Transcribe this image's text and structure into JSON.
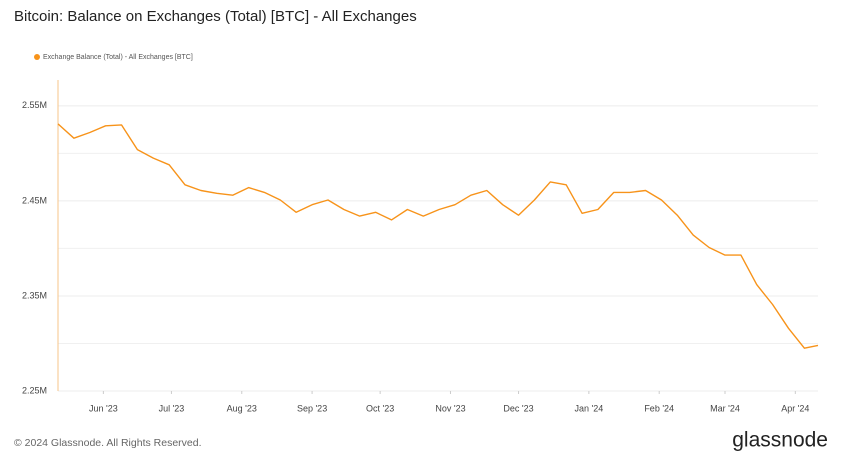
{
  "chart_data": {
    "type": "line",
    "title": "Bitcoin: Balance on Exchanges (Total) [BTC] - All Exchanges",
    "footer": "© 2024 Glassnode. All Rights Reserved.",
    "brand": "glassnode",
    "x": [
      "2023-05-12",
      "2023-05-19",
      "2023-05-26",
      "2023-06-02",
      "2023-06-09",
      "2023-06-16",
      "2023-06-23",
      "2023-06-30",
      "2023-07-07",
      "2023-07-14",
      "2023-07-21",
      "2023-07-28",
      "2023-08-04",
      "2023-08-11",
      "2023-08-18",
      "2023-08-25",
      "2023-09-01",
      "2023-09-08",
      "2023-09-15",
      "2023-09-22",
      "2023-09-29",
      "2023-10-06",
      "2023-10-13",
      "2023-10-20",
      "2023-10-27",
      "2023-11-03",
      "2023-11-10",
      "2023-11-17",
      "2023-11-24",
      "2023-12-01",
      "2023-12-08",
      "2023-12-15",
      "2023-12-22",
      "2023-12-29",
      "2024-01-05",
      "2024-01-12",
      "2024-01-19",
      "2024-01-26",
      "2024-02-02",
      "2024-02-09",
      "2024-02-16",
      "2024-02-23",
      "2024-03-01",
      "2024-03-08",
      "2024-03-15",
      "2024-03-22",
      "2024-03-29",
      "2024-04-05",
      "2024-04-11"
    ],
    "series": [
      {
        "name": "Exchange Balance (Total) - All Exchanges [BTC]",
        "color": "#f7931a",
        "values": [
          2531000,
          2516000,
          2522000,
          2529000,
          2530000,
          2504000,
          2495000,
          2488000,
          2467000,
          2461000,
          2458000,
          2456000,
          2464000,
          2459000,
          2451000,
          2438000,
          2446000,
          2451000,
          2441000,
          2434000,
          2438000,
          2430000,
          2441000,
          2434000,
          2441000,
          2446000,
          2456000,
          2461000,
          2446000,
          2435000,
          2451000,
          2470000,
          2467000,
          2437000,
          2441000,
          2459000,
          2459000,
          2461000,
          2451000,
          2435000,
          2414000,
          2401000,
          2393000,
          2393000,
          2362000,
          2341000,
          2316000,
          2295000,
          2298000
        ]
      }
    ],
    "xlim": [
      "2023-05-12",
      "2024-04-11"
    ],
    "xticks": [
      {
        "value": "2023-06-01",
        "label": "Jun '23"
      },
      {
        "value": "2023-07-01",
        "label": "Jul '23"
      },
      {
        "value": "2023-08-01",
        "label": "Aug '23"
      },
      {
        "value": "2023-09-01",
        "label": "Sep '23"
      },
      {
        "value": "2023-10-01",
        "label": "Oct '23"
      },
      {
        "value": "2023-11-01",
        "label": "Nov '23"
      },
      {
        "value": "2023-12-01",
        "label": "Dec '23"
      },
      {
        "value": "2024-01-01",
        "label": "Jan '24"
      },
      {
        "value": "2024-02-01",
        "label": "Feb '24"
      },
      {
        "value": "2024-03-01",
        "label": "Mar '24"
      },
      {
        "value": "2024-04-01",
        "label": "Apr '24"
      }
    ],
    "ylim": [
      2250000,
      2593000
    ],
    "yticks": [
      {
        "value": 2250000,
        "label": "2.25M"
      },
      {
        "value": 2350000,
        "label": "2.35M"
      },
      {
        "value": 2450000,
        "label": "2.45M"
      },
      {
        "value": 2550000,
        "label": "2.55M"
      }
    ],
    "minor_yticks": [
      2300000,
      2400000,
      2500000
    ],
    "grid": true
  }
}
